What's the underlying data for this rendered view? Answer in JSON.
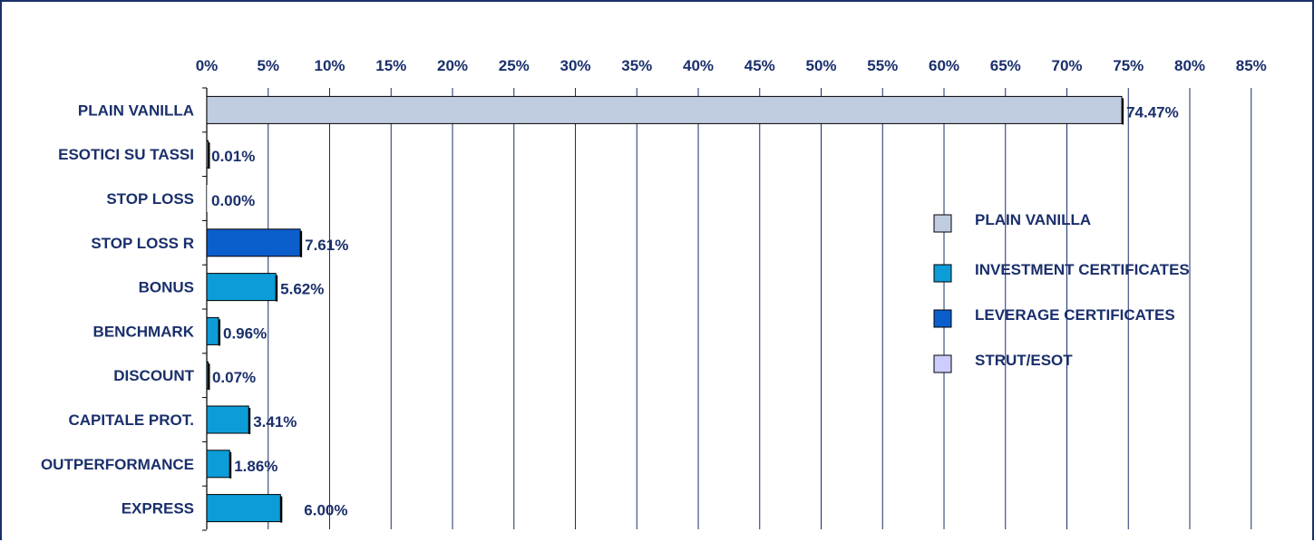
{
  "colors": {
    "text": "#1a2f6b",
    "grid": "#1a2f6b",
    "frame": "#1a2f6b",
    "bar_outline": "#000000"
  },
  "chart_data": {
    "type": "bar",
    "orientation": "horizontal",
    "title": "",
    "xlabel": "",
    "ylabel": "",
    "xlim": [
      0,
      85
    ],
    "x_ticks": [
      "0%",
      "5%",
      "10%",
      "15%",
      "20%",
      "25%",
      "30%",
      "35%",
      "40%",
      "45%",
      "50%",
      "55%",
      "60%",
      "65%",
      "70%",
      "75%",
      "80%",
      "85%"
    ],
    "x_axis_position": "top",
    "grid": true,
    "legend_position": "right",
    "categories": [
      "PLAIN VANILLA",
      "ESOTICI SU TASSI",
      "STOP LOSS",
      "STOP LOSS R",
      "BONUS",
      "BENCHMARK",
      "DISCOUNT",
      "CAPITALE PROT.",
      "OUTPERFORMANCE",
      "EXPRESS"
    ],
    "values": [
      74.47,
      0.01,
      0.0,
      7.61,
      5.62,
      0.96,
      0.07,
      3.41,
      1.86,
      6.0
    ],
    "value_labels": [
      "74.47%",
      "0.01%",
      "0.00%",
      "7.61%",
      "5.62%",
      "0.96%",
      "0.07%",
      "3.41%",
      "1.86%",
      "6.00%"
    ],
    "bar_groups": [
      "PLAIN VANILLA",
      "STRUT/ESOT",
      "STRUT/ESOT",
      "LEVERAGE CERTIFICATES",
      "INVESTMENT CERTIFICATES",
      "INVESTMENT CERTIFICATES",
      "INVESTMENT CERTIFICATES",
      "INVESTMENT CERTIFICATES",
      "INVESTMENT CERTIFICATES",
      "INVESTMENT CERTIFICATES"
    ],
    "legend": [
      {
        "name": "PLAIN VANILLA",
        "color": "#c0cce0"
      },
      {
        "name": "INVESTMENT CERTIFICATES",
        "color": "#0c9cd8"
      },
      {
        "name": "LEVERAGE CERTIFICATES",
        "color": "#0b5fcc"
      },
      {
        "name": "STRUT/ESOT",
        "color": "#ccccff"
      }
    ]
  }
}
